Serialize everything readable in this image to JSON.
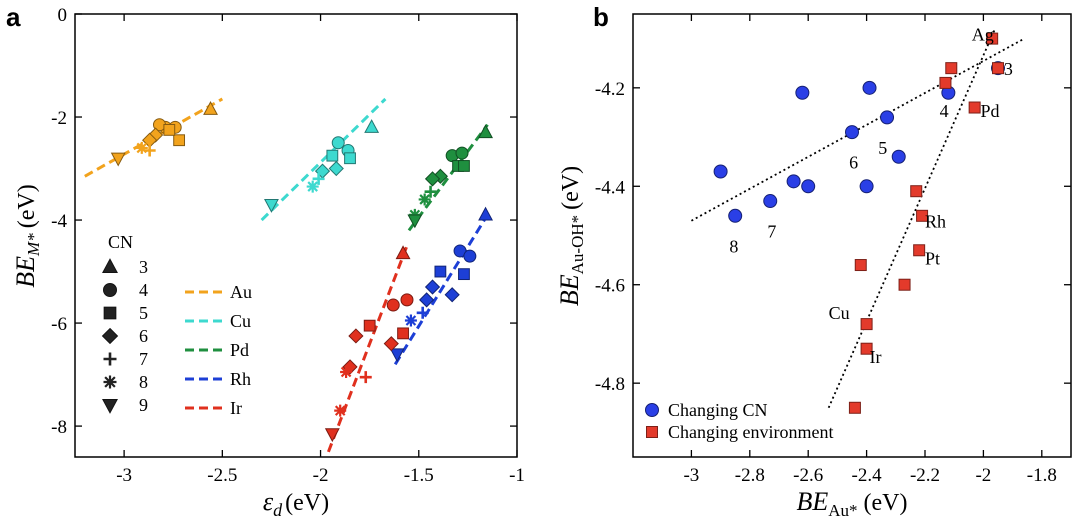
{
  "chart_data": [
    {
      "panel": "a",
      "type": "scatter",
      "xlabel": "ε",
      "xlabel_sub": "d",
      "xlabel_unit": "(eV)",
      "ylabel": "BE",
      "ylabel_sub": "M*",
      "ylabel_unit": "(eV)",
      "xlim": [
        -3.25,
        -1.0
      ],
      "ylim": [
        -8.6,
        0
      ],
      "x_ticks": [
        -3,
        -2.5,
        -2,
        -1.5,
        -1
      ],
      "x_tick_labels": [
        "-3",
        "-2.5",
        "-2",
        "-1.5",
        "-1"
      ],
      "y_ticks": [
        0,
        -2,
        -4,
        -6,
        -8
      ],
      "y_tick_labels": [
        "0",
        "-2",
        "-4",
        "-6",
        "-8"
      ],
      "cn_legend_title": "CN",
      "cn_legend": [
        {
          "cn": "3",
          "marker": "triangle-up"
        },
        {
          "cn": "4",
          "marker": "circle"
        },
        {
          "cn": "5",
          "marker": "square"
        },
        {
          "cn": "6",
          "marker": "diamond"
        },
        {
          "cn": "7",
          "marker": "plus"
        },
        {
          "cn": "8",
          "marker": "asterisk"
        },
        {
          "cn": "9",
          "marker": "triangle-down"
        }
      ],
      "series": [
        {
          "name": "Au",
          "color": "#f2a31d",
          "fit": [
            [
              -3.2,
              -3.15
            ],
            [
              -2.5,
              -1.65
            ]
          ],
          "points": [
            [
              -2.56,
              -1.85,
              "triangle-up"
            ],
            [
              -2.74,
              -2.2,
              "circle"
            ],
            [
              -2.79,
              -2.2,
              "circle"
            ],
            [
              -2.82,
              -2.15,
              "circle"
            ],
            [
              -2.72,
              -2.45,
              "square"
            ],
            [
              -2.77,
              -2.25,
              "square"
            ],
            [
              -2.84,
              -2.35,
              "diamond"
            ],
            [
              -2.87,
              -2.45,
              "diamond"
            ],
            [
              -2.87,
              -2.65,
              "plus"
            ],
            [
              -2.91,
              -2.6,
              "asterisk"
            ],
            [
              -3.03,
              -2.8,
              "triangle-down"
            ]
          ]
        },
        {
          "name": "Cu",
          "color": "#3dd9cf",
          "fit": [
            [
              -2.3,
              -4.0
            ],
            [
              -1.67,
              -1.65
            ]
          ],
          "points": [
            [
              -1.74,
              -2.2,
              "triangle-up"
            ],
            [
              -1.91,
              -2.5,
              "circle"
            ],
            [
              -1.86,
              -2.65,
              "circle"
            ],
            [
              -1.85,
              -2.8,
              "square"
            ],
            [
              -1.94,
              -2.75,
              "square"
            ],
            [
              -1.92,
              -3.0,
              "diamond"
            ],
            [
              -1.99,
              -3.05,
              "diamond"
            ],
            [
              -2.01,
              -3.2,
              "plus"
            ],
            [
              -2.04,
              -3.35,
              "asterisk"
            ],
            [
              -2.25,
              -3.7,
              "triangle-down"
            ]
          ]
        },
        {
          "name": "Pd",
          "color": "#1f8f3f",
          "fit": [
            [
              -1.55,
              -4.2
            ],
            [
              -1.15,
              -2.15
            ]
          ],
          "points": [
            [
              -1.16,
              -2.3,
              "triangle-up"
            ],
            [
              -1.33,
              -2.75,
              "circle"
            ],
            [
              -1.28,
              -2.7,
              "circle"
            ],
            [
              -1.3,
              -2.95,
              "square"
            ],
            [
              -1.27,
              -2.95,
              "square"
            ],
            [
              -1.39,
              -3.15,
              "diamond"
            ],
            [
              -1.43,
              -3.2,
              "diamond"
            ],
            [
              -1.44,
              -3.45,
              "plus"
            ],
            [
              -1.47,
              -3.6,
              "asterisk"
            ],
            [
              -1.52,
              -3.9,
              "asterisk"
            ],
            [
              -1.52,
              -4.0,
              "triangle-down"
            ]
          ]
        },
        {
          "name": "Rh",
          "color": "#1d3fd6",
          "fit": [
            [
              -1.62,
              -6.8
            ],
            [
              -1.15,
              -3.9
            ]
          ],
          "points": [
            [
              -1.16,
              -3.9,
              "triangle-up"
            ],
            [
              -1.29,
              -4.6,
              "circle"
            ],
            [
              -1.24,
              -4.7,
              "circle"
            ],
            [
              -1.27,
              -5.05,
              "square"
            ],
            [
              -1.39,
              -5.0,
              "square"
            ],
            [
              -1.43,
              -5.3,
              "diamond"
            ],
            [
              -1.33,
              -5.45,
              "diamond"
            ],
            [
              -1.46,
              -5.55,
              "diamond"
            ],
            [
              -1.48,
              -5.8,
              "plus"
            ],
            [
              -1.54,
              -5.95,
              "asterisk"
            ],
            [
              -1.61,
              -6.6,
              "triangle-down"
            ]
          ]
        },
        {
          "name": "Ir",
          "color": "#e0301e",
          "fit": [
            [
              -1.96,
              -8.5
            ],
            [
              -1.56,
              -4.5
            ]
          ],
          "points": [
            [
              -1.58,
              -4.65,
              "triangle-up"
            ],
            [
              -1.56,
              -5.55,
              "circle"
            ],
            [
              -1.63,
              -5.65,
              "circle"
            ],
            [
              -1.58,
              -6.2,
              "square"
            ],
            [
              -1.75,
              -6.05,
              "square"
            ],
            [
              -1.82,
              -6.25,
              "diamond"
            ],
            [
              -1.64,
              -6.4,
              "diamond"
            ],
            [
              -1.85,
              -6.85,
              "diamond"
            ],
            [
              -1.77,
              -7.05,
              "plus"
            ],
            [
              -1.87,
              -6.95,
              "asterisk"
            ],
            [
              -1.9,
              -7.7,
              "asterisk"
            ],
            [
              -1.94,
              -8.15,
              "triangle-down"
            ]
          ]
        }
      ]
    },
    {
      "panel": "b",
      "type": "scatter",
      "xlabel": "BE",
      "xlabel_sub": "Au*",
      "xlabel_unit": "(eV)",
      "ylabel": "BE",
      "ylabel_sub": "Au-OH*",
      "ylabel_unit": "(eV)",
      "xlim": [
        -3.2,
        -1.7
      ],
      "ylim": [
        -4.95,
        -4.05
      ],
      "x_ticks": [
        -3,
        -2.8,
        -2.6,
        -2.4,
        -2.2,
        -2,
        -1.8
      ],
      "x_tick_labels": [
        "-3",
        "-2.8",
        "-2.6",
        "-2.4",
        "-2.2",
        "-2",
        "-1.8"
      ],
      "y_ticks": [
        -4.2,
        -4.4,
        -4.6,
        -4.8
      ],
      "y_tick_labels": [
        "-4.2",
        "-4.4",
        "-4.6",
        "-4.8"
      ],
      "legend": [
        {
          "label": "Changing CN",
          "color": "#2a3fe6",
          "marker": "circle"
        },
        {
          "label": "Changing environment",
          "color": "#e33a2b",
          "marker": "square"
        }
      ],
      "series": [
        {
          "name": "Changing CN",
          "color": "#2a3fe6",
          "fit": [
            [
              -3.0,
              -4.47
            ],
            [
              -1.86,
              -4.1
            ]
          ],
          "points": [
            [
              -2.9,
              -4.37
            ],
            [
              -2.85,
              -4.46
            ],
            [
              -2.73,
              -4.43
            ],
            [
              -2.65,
              -4.39
            ],
            [
              -2.6,
              -4.4
            ],
            [
              -2.62,
              -4.21
            ],
            [
              -2.39,
              -4.2
            ],
            [
              -2.45,
              -4.29
            ],
            [
              -2.33,
              -4.26
            ],
            [
              -2.29,
              -4.34
            ],
            [
              -2.4,
              -4.4
            ],
            [
              -2.12,
              -4.21
            ],
            [
              -1.95,
              -4.16
            ]
          ]
        },
        {
          "name": "Changing environment",
          "color": "#e33a2b",
          "fit": [
            [
              -2.53,
              -4.85
            ],
            [
              -1.96,
              -4.08
            ]
          ],
          "points": [
            [
              -1.97,
              -4.1
            ],
            [
              -1.95,
              -4.16
            ],
            [
              -2.11,
              -4.16
            ],
            [
              -2.13,
              -4.19
            ],
            [
              -2.03,
              -4.24
            ],
            [
              -2.23,
              -4.41
            ],
            [
              -2.21,
              -4.46
            ],
            [
              -2.22,
              -4.53
            ],
            [
              -2.42,
              -4.56
            ],
            [
              -2.27,
              -4.6
            ],
            [
              -2.4,
              -4.68
            ],
            [
              -2.4,
              -4.73
            ],
            [
              -2.44,
              -4.85
            ]
          ]
        }
      ],
      "annotations": [
        {
          "text": "Ag",
          "x": -2.04,
          "y": -4.09
        },
        {
          "text": "3",
          "x": -1.93,
          "y": -4.16
        },
        {
          "text": "4",
          "x": -2.15,
          "y": -4.245
        },
        {
          "text": "Pd",
          "x": -2.01,
          "y": -4.245
        },
        {
          "text": "5",
          "x": -2.36,
          "y": -4.32
        },
        {
          "text": "6",
          "x": -2.46,
          "y": -4.35
        },
        {
          "text": "8",
          "x": -2.87,
          "y": -4.52
        },
        {
          "text": "7",
          "x": -2.74,
          "y": -4.49
        },
        {
          "text": "Rh",
          "x": -2.2,
          "y": -4.47
        },
        {
          "text": "Pt",
          "x": -2.2,
          "y": -4.545
        },
        {
          "text": "Cu",
          "x": -2.53,
          "y": -4.655
        },
        {
          "text": "Ir",
          "x": -2.39,
          "y": -4.745
        }
      ]
    }
  ],
  "panel_labels": {
    "a": "a",
    "b": "b"
  }
}
